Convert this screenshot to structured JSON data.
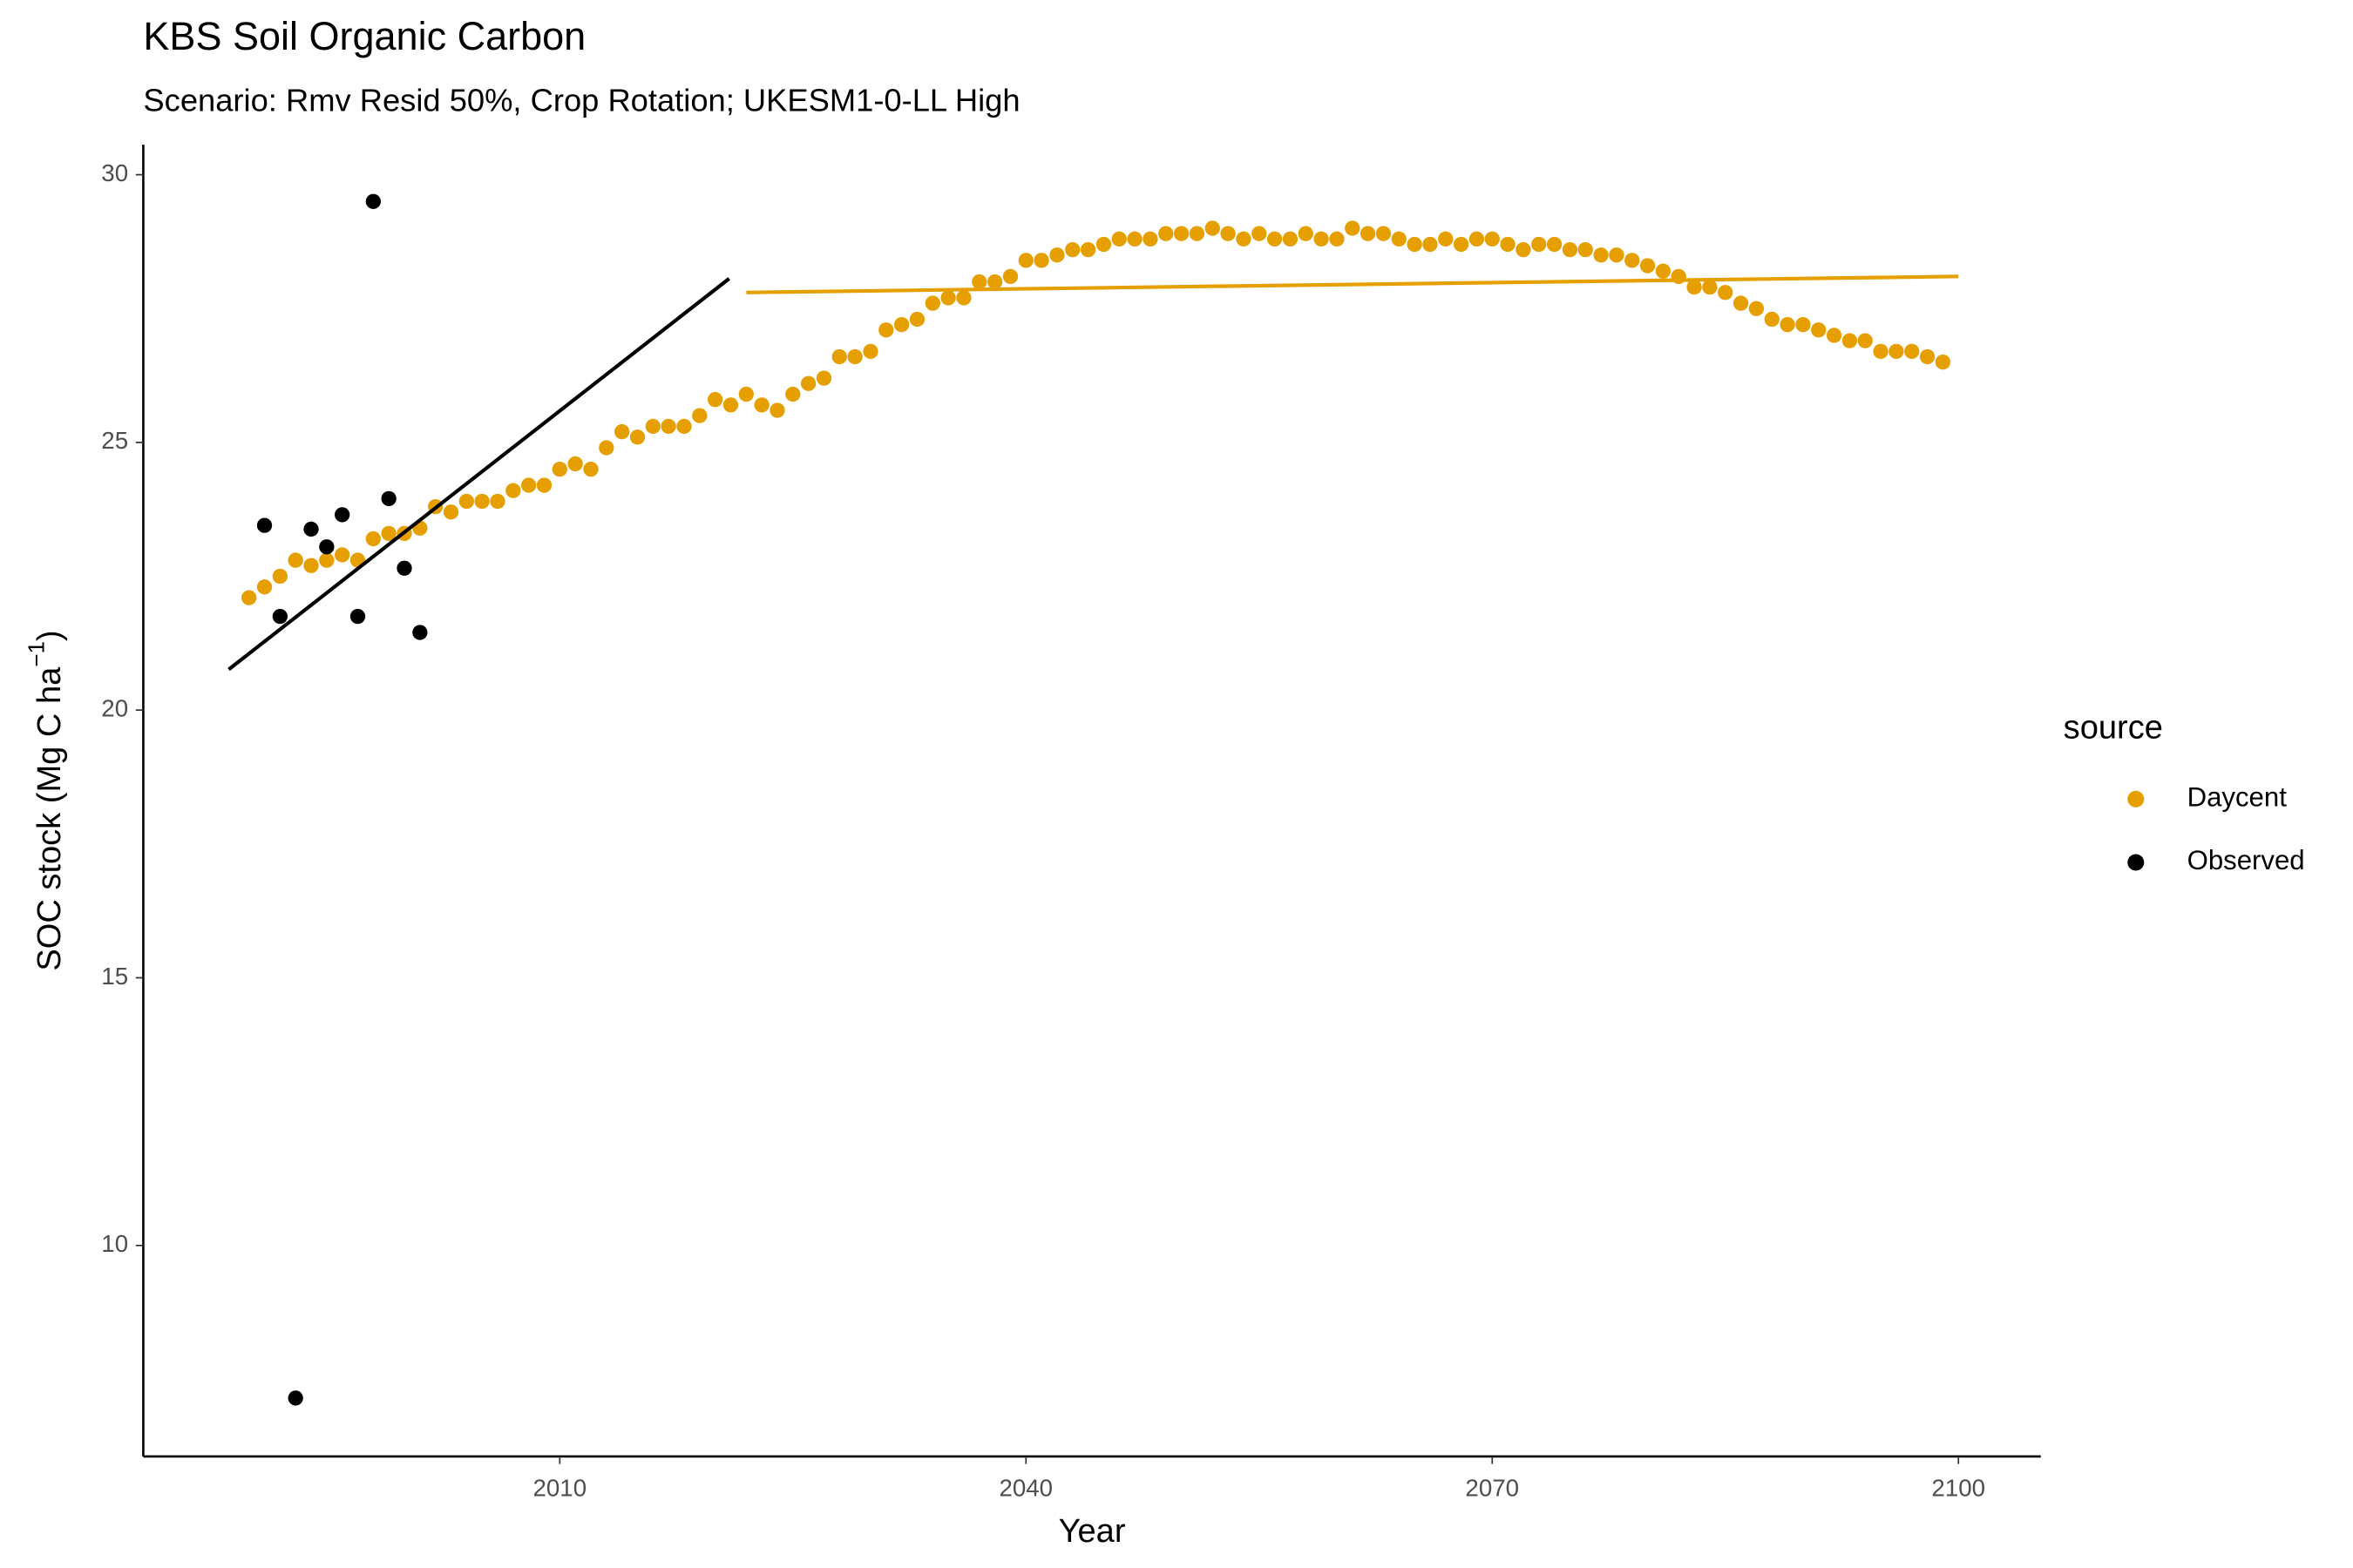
{
  "chart_data": {
    "type": "scatter",
    "title": "KBS Soil Organic Carbon",
    "subtitle": "Scenario: Rmv Resid 50%, Crop Rotation; UKESM1-0-LL High",
    "x_label": "Year",
    "y_label": {
      "text": "SOC stock (Mg C ha",
      "superscript": "−1",
      "close": ")"
    },
    "legend_title": "source",
    "legend_position": "right",
    "grid": false,
    "xlim": [
      1983.2,
      2105.3
    ],
    "xticks": [
      2010,
      2040,
      2070,
      2100
    ],
    "ylim": [
      6.06,
      30.56
    ],
    "yticks": [
      10,
      15,
      20,
      25,
      30
    ],
    "series": [
      {
        "name": "Daycent",
        "color": "#e69f00",
        "x": [
          1990,
          1991,
          1992,
          1993,
          1994,
          1995,
          1996,
          1997,
          1998,
          1999,
          2000,
          2001,
          2002,
          2003,
          2004,
          2005,
          2006,
          2007,
          2008,
          2009,
          2010,
          2011,
          2012,
          2013,
          2014,
          2015,
          2016,
          2017,
          2018,
          2019,
          2020,
          2021,
          2022,
          2023,
          2024,
          2025,
          2026,
          2027,
          2028,
          2029,
          2030,
          2031,
          2032,
          2033,
          2034,
          2035,
          2036,
          2037,
          2038,
          2039,
          2040,
          2041,
          2042,
          2043,
          2044,
          2045,
          2046,
          2047,
          2048,
          2049,
          2050,
          2051,
          2052,
          2053,
          2054,
          2055,
          2056,
          2057,
          2058,
          2059,
          2060,
          2061,
          2062,
          2063,
          2064,
          2065,
          2066,
          2067,
          2068,
          2069,
          2070,
          2071,
          2072,
          2073,
          2074,
          2075,
          2076,
          2077,
          2078,
          2079,
          2080,
          2081,
          2082,
          2083,
          2084,
          2085,
          2086,
          2087,
          2088,
          2089,
          2090,
          2091,
          2092,
          2093,
          2094,
          2095,
          2096,
          2097,
          2098,
          2099
        ],
        "values": [
          22.1,
          22.3,
          22.5,
          22.8,
          22.7,
          22.8,
          22.9,
          22.8,
          23.2,
          23.3,
          23.3,
          23.4,
          23.8,
          23.7,
          23.9,
          23.9,
          23.9,
          24.1,
          24.2,
          24.2,
          24.5,
          24.6,
          24.5,
          24.9,
          25.2,
          25.1,
          25.3,
          25.3,
          25.3,
          25.5,
          25.8,
          25.7,
          25.9,
          25.7,
          25.6,
          25.9,
          26.1,
          26.2,
          26.6,
          26.6,
          26.7,
          27.1,
          27.2,
          27.3,
          27.6,
          27.7,
          27.7,
          28.0,
          28.0,
          28.1,
          28.4,
          28.4,
          28.5,
          28.6,
          28.6,
          28.7,
          28.8,
          28.8,
          28.8,
          28.9,
          28.9,
          28.9,
          29.0,
          28.9,
          28.8,
          28.9,
          28.8,
          28.8,
          28.9,
          28.8,
          28.8,
          29.0,
          28.9,
          28.9,
          28.8,
          28.7,
          28.7,
          28.8,
          28.7,
          28.8,
          28.8,
          28.7,
          28.6,
          28.7,
          28.7,
          28.6,
          28.6,
          28.5,
          28.5,
          28.4,
          28.3,
          28.2,
          28.1,
          27.9,
          27.9,
          27.8,
          27.6,
          27.5,
          27.3,
          27.2,
          27.2,
          27.1,
          27.0,
          26.9,
          26.9,
          26.7,
          26.7,
          26.7,
          26.6,
          26.5
        ],
        "trend": {
          "x": [
            2022,
            2100
          ],
          "y": [
            27.8,
            28.1
          ]
        }
      },
      {
        "name": "Observed",
        "color": "#000000",
        "x": [
          1991,
          1992,
          1993,
          1994,
          1995,
          1996,
          1997,
          1998,
          1999,
          2000,
          2001
        ],
        "values": [
          23.45,
          21.75,
          7.15,
          23.38,
          23.05,
          23.65,
          21.75,
          29.5,
          23.95,
          22.65,
          21.45
        ],
        "trend": {
          "x": [
            1988.7,
            2020.9
          ],
          "y": [
            20.76,
            28.06
          ]
        }
      }
    ]
  }
}
